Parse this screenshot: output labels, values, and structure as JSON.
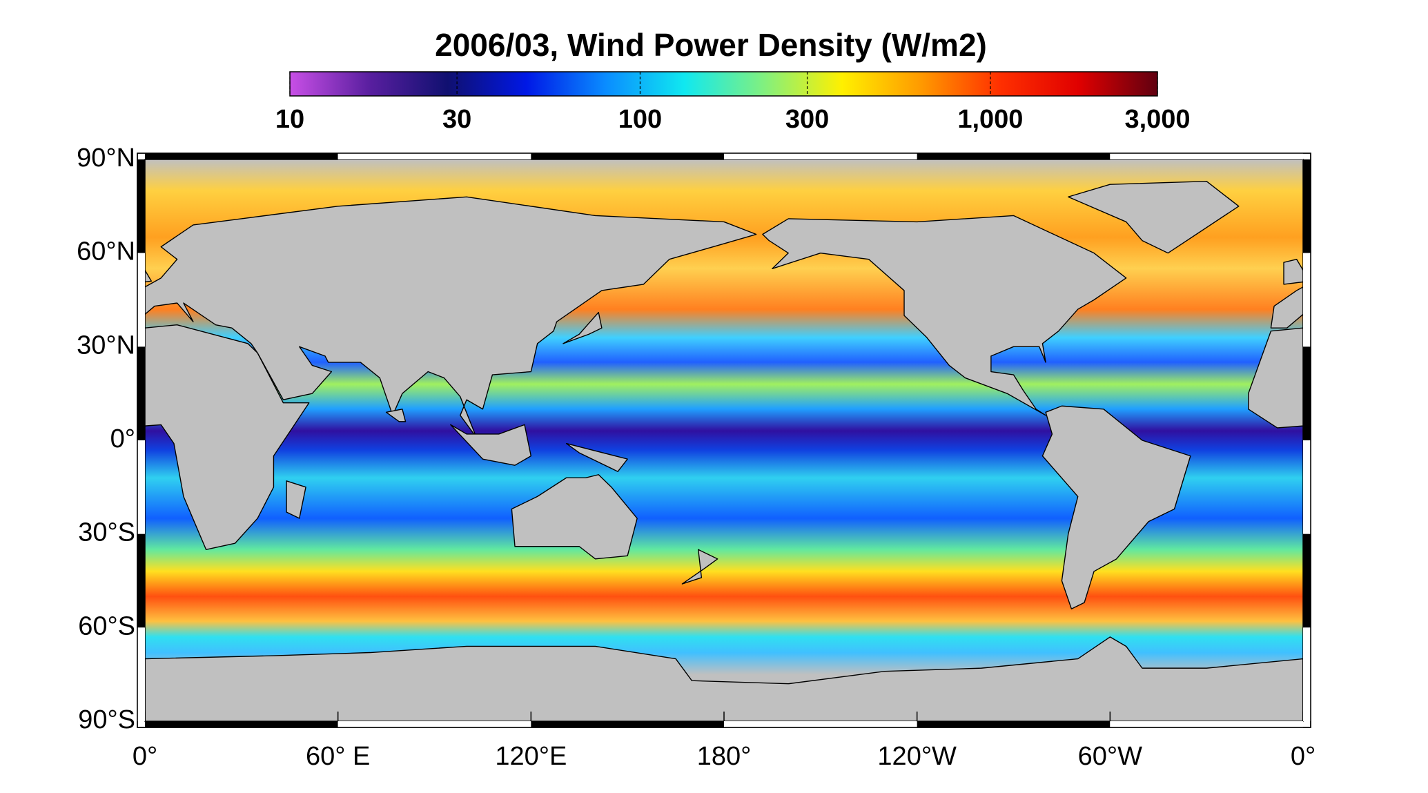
{
  "title": "2006/03, Wind Power Density (W/m2)",
  "colorbar": {
    "scale": "log",
    "range": [
      10,
      3000
    ],
    "ticks": [
      10,
      30,
      100,
      300,
      {
        "value": 1000,
        "label": "1,000"
      },
      {
        "value": 3000,
        "label": "3,000"
      }
    ],
    "colormap": [
      "#c84fe6",
      "#5a1fa0",
      "#101070",
      "#0018e6",
      "#0a8cff",
      "#10e8f0",
      "#80f080",
      "#fff000",
      "#ff9a00",
      "#ff3000",
      "#e00000",
      "#600010"
    ]
  },
  "map": {
    "lon_range": [
      0,
      360
    ],
    "lat_range": [
      -90,
      90
    ],
    "land_color": "#c0c0c0",
    "lon_ticks": [
      {
        "value": 0,
        "label": "0°"
      },
      {
        "value": 60,
        "label": "60° E"
      },
      {
        "value": 120,
        "label": "120°E"
      },
      {
        "value": 180,
        "label": "180°"
      },
      {
        "value": 240,
        "label": "120°W"
      },
      {
        "value": 300,
        "label": "60°W"
      },
      {
        "value": 360,
        "label": "0°"
      }
    ],
    "lat_ticks": [
      {
        "value": 90,
        "label": "90°N"
      },
      {
        "value": 60,
        "label": "60°N"
      },
      {
        "value": 30,
        "label": "30°N"
      },
      {
        "value": 0,
        "label": "0°"
      },
      {
        "value": -30,
        "label": "30°S"
      },
      {
        "value": -60,
        "label": "60°S"
      },
      {
        "value": -90,
        "label": "90°S"
      }
    ]
  }
}
